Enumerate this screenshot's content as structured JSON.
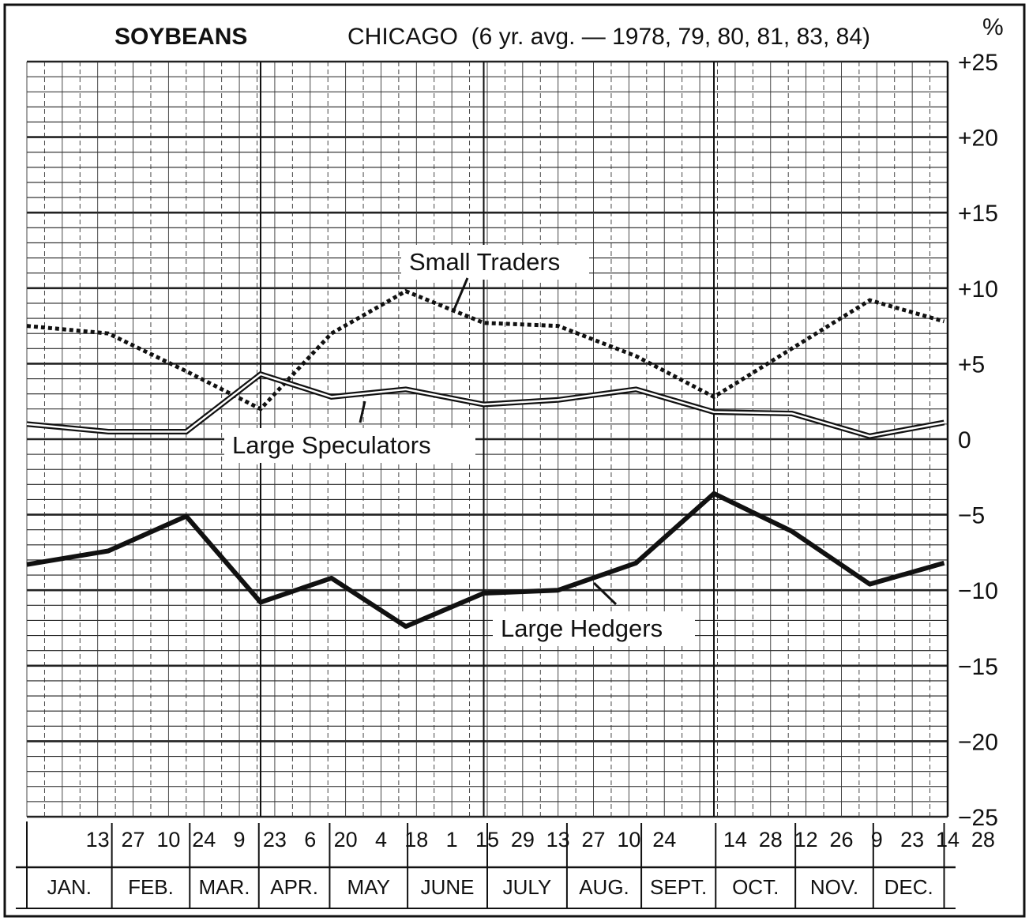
{
  "header": {
    "title": "SOYBEANS",
    "subtitle": "CHICAGO  (6 yr. avg. — 1978, 79, 80, 81, 83, 84)",
    "unit": "%"
  },
  "chart_data": {
    "type": "line",
    "title": "SOYBEANS",
    "subtitle": "CHICAGO  (6 yr. avg. — 1978, 79, 80, 81, 83, 84)",
    "ylabel": "%",
    "ylim": [
      -25,
      25
    ],
    "yticks": [
      "+25",
      "+20",
      "+15",
      "+10",
      "+5",
      "0",
      "−5",
      "−10",
      "−15",
      "−20",
      "−25"
    ],
    "ytick_values": [
      25,
      20,
      15,
      10,
      5,
      0,
      -5,
      -10,
      -15,
      -20,
      -25
    ],
    "grid": true,
    "x_day_labels": [
      "13",
      "27",
      "10",
      "24",
      "9",
      "23",
      "6",
      "20",
      "4",
      "18",
      "1",
      "15",
      "29",
      "13",
      "27",
      "10",
      "24",
      "14",
      "28",
      "12",
      "26",
      "9",
      "23",
      "14",
      "28"
    ],
    "x_day_positions": [
      2,
      3,
      4,
      5,
      6,
      7,
      8,
      9,
      10,
      11,
      12,
      13,
      14,
      15,
      16,
      17,
      18,
      20,
      21,
      22,
      23,
      24,
      25,
      26,
      27
    ],
    "months": [
      "JAN.",
      "FEB.",
      "MAR.",
      "APR.",
      "MAY",
      "JUNE",
      "JULY",
      "AUG.",
      "SEPT.",
      "OCT.",
      "NOV.",
      "DEC."
    ],
    "month_bounds": [
      0,
      2.4,
      4.6,
      6.55,
      8.55,
      10.75,
      13.0,
      15.25,
      17.35,
      19.45,
      21.7,
      23.9,
      25.9
    ],
    "series": [
      {
        "name": "Small Traders",
        "style": "dotted",
        "x": [
          0,
          2.3,
          4.5,
          6.6,
          8.6,
          10.7,
          12.9,
          15.0,
          17.2,
          19.4,
          21.6,
          23.8,
          25.9
        ],
        "y": [
          7.5,
          7.0,
          4.5,
          2.0,
          7.0,
          9.8,
          7.7,
          7.5,
          5.5,
          2.8,
          6.0,
          9.2,
          7.8
        ]
      },
      {
        "name": "Large Speculators",
        "style": "double",
        "x": [
          0,
          2.3,
          4.5,
          6.6,
          8.6,
          10.7,
          12.9,
          15.0,
          17.2,
          19.4,
          21.6,
          23.8,
          25.9
        ],
        "y": [
          1.0,
          0.5,
          0.5,
          4.3,
          2.8,
          3.3,
          2.3,
          2.6,
          3.3,
          1.8,
          1.7,
          0.2,
          1.1
        ]
      },
      {
        "name": "Large Hedgers",
        "style": "heavy",
        "x": [
          0,
          2.3,
          4.5,
          6.6,
          8.6,
          10.7,
          12.9,
          15.0,
          17.2,
          19.4,
          21.6,
          23.8,
          25.9
        ],
        "y": [
          -8.3,
          -7.4,
          -5.1,
          -10.8,
          -9.2,
          -12.4,
          -10.2,
          -10.0,
          -8.2,
          -3.6,
          -6.1,
          -9.6,
          -8.2
        ]
      }
    ],
    "annotations": [
      "Small Traders",
      "Large Speculators",
      "Large Hedgers"
    ]
  }
}
